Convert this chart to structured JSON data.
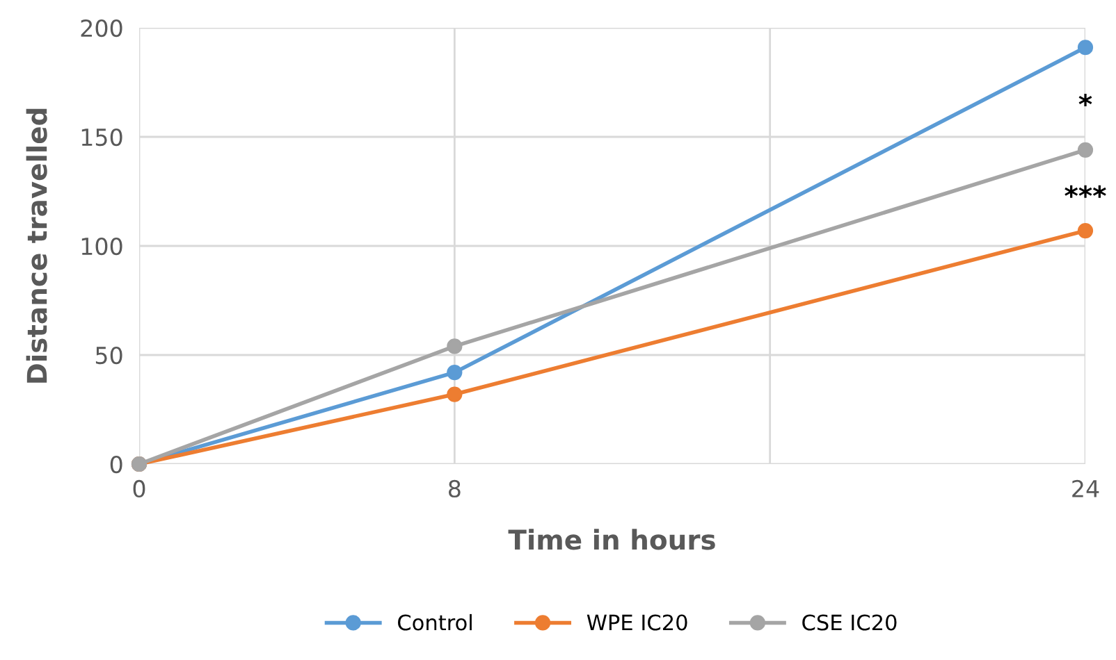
{
  "chart_data": {
    "type": "line",
    "xlabel": "Time in hours",
    "ylabel": "Distance travelled",
    "x": [
      0,
      8,
      24
    ],
    "series": [
      {
        "name": "Control",
        "color": "#5b9bd5",
        "values": [
          0,
          42,
          191
        ]
      },
      {
        "name": "WPE IC20",
        "color": "#ed7d31",
        "values": [
          0,
          32,
          107
        ]
      },
      {
        "name": "CSE IC20",
        "color": "#a5a5a5",
        "values": [
          0,
          54,
          144
        ]
      }
    ],
    "xlim": [
      0,
      24
    ],
    "xticks": [
      0,
      8,
      {
        "value": 16,
        "label": null
      },
      24
    ],
    "ylim": [
      0,
      200
    ],
    "yticks": [
      0,
      50,
      100,
      150,
      200
    ],
    "annotations": [
      "*",
      "***"
    ],
    "grid": true,
    "legend": "bottom",
    "marker": "circle",
    "line_style": "solid"
  }
}
